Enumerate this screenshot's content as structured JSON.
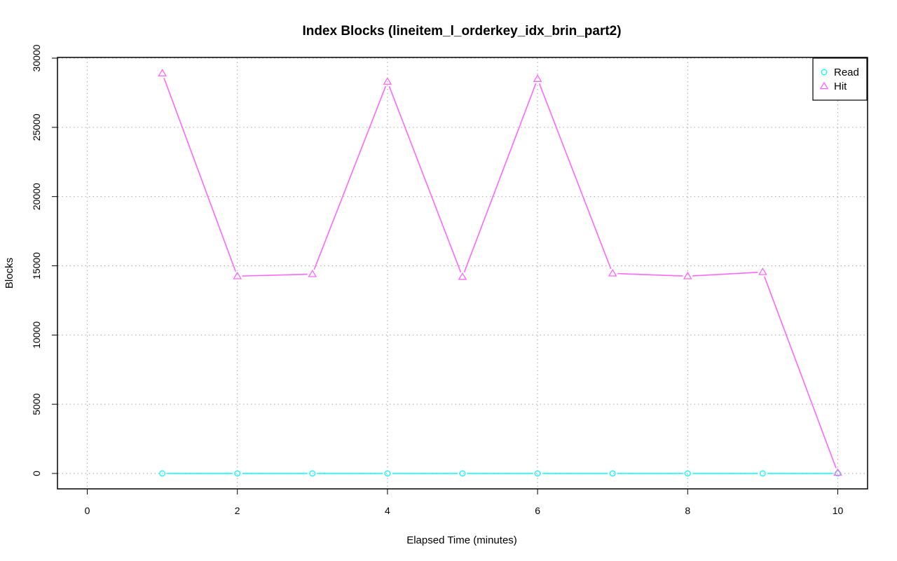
{
  "chart_data": {
    "type": "line",
    "title": "Index Blocks (lineitem_l_orderkey_idx_brin_part2)",
    "xlabel": "Elapsed Time (minutes)",
    "ylabel": "Blocks",
    "xlim": [
      0,
      10
    ],
    "ylim": [
      0,
      30000
    ],
    "x_ticks": [
      0,
      2,
      4,
      6,
      8,
      10
    ],
    "y_ticks": [
      0,
      5000,
      10000,
      15000,
      20000,
      25000,
      30000
    ],
    "grid": true,
    "legend_position": "top-right",
    "x": [
      1,
      2,
      3,
      4,
      5,
      6,
      7,
      8,
      9,
      10
    ],
    "series": [
      {
        "name": "Read",
        "color": "#00FFFF",
        "marker": "circle",
        "values": [
          0,
          0,
          0,
          0,
          0,
          0,
          0,
          0,
          0,
          0
        ]
      },
      {
        "name": "Hit",
        "color": "#FF66FF",
        "marker": "triangle",
        "values": [
          28900,
          14250,
          14400,
          28300,
          14200,
          28500,
          14450,
          14250,
          14550,
          50
        ]
      }
    ]
  }
}
